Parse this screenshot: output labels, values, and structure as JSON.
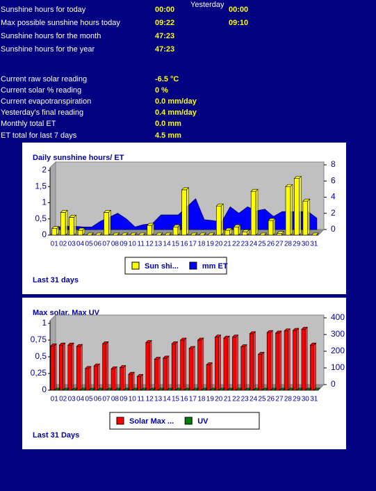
{
  "stats": {
    "yesterday_label": "Yesterday",
    "rows": [
      {
        "label": "Sunshine hours for today",
        "value": "00:00",
        "yesterday": "00:00"
      },
      {
        "label": "Max possible sunshine hours today",
        "value": "09:22",
        "yesterday": "09:10"
      },
      {
        "label": "Sunshine hours for the month",
        "value": "47:23"
      },
      {
        "label": "Sunshine hours for the year",
        "value": "47:23"
      },
      {
        "label": "Current raw solar reading",
        "value": "-6.5 °C"
      },
      {
        "label": "Current solar % reading",
        "value": "0 %"
      },
      {
        "label": "Current evapotranspiration",
        "value": "0.0 mm/day"
      },
      {
        "label": "Yesterday's final reading",
        "value": "0.4 mm/day"
      },
      {
        "label": "Monthly total ET",
        "value": "0.0 mm"
      },
      {
        "label": "ET total for last 7 days",
        "value": "4.5 mm"
      }
    ]
  },
  "chart_data": [
    {
      "type": "bar",
      "title": "Daily sunshine hours/ ET",
      "footer": "Last 31 days",
      "categories": [
        "01",
        "02",
        "03",
        "04",
        "05",
        "06",
        "07",
        "08",
        "09",
        "10",
        "11",
        "12",
        "13",
        "14",
        "15",
        "16",
        "17",
        "18",
        "19",
        "20",
        "21",
        "22",
        "23",
        "24",
        "25",
        "26",
        "27",
        "28",
        "29",
        "30",
        "31"
      ],
      "ylim": [
        0,
        2
      ],
      "yticks": [
        0,
        {
          "value": 0.5,
          "label": "0,5"
        },
        1,
        {
          "value": 1.5,
          "label": "1,5"
        },
        2
      ],
      "y2lim": [
        0,
        8
      ],
      "y2ticks": [
        0,
        2,
        4,
        6,
        8
      ],
      "series": [
        {
          "name": "Sun shi...",
          "color": "#ffff00",
          "values": [
            0.2,
            0.7,
            0.55,
            0.15,
            0,
            0,
            0.7,
            0,
            0,
            0,
            0,
            0.3,
            0,
            0,
            0.25,
            1.4,
            0,
            0,
            0,
            0.9,
            0.15,
            0.25,
            0.1,
            1.35,
            0,
            0.45,
            0.05,
            1.5,
            1.75,
            1.05,
            0
          ]
        },
        {
          "name": "mm ET",
          "color": "#0000ff",
          "type": "area",
          "axis": "y2",
          "values": [
            0.3,
            0.4,
            0.4,
            0.3,
            0.3,
            1.0,
            1.5,
            2.0,
            1.3,
            0.3,
            0.6,
            0.7,
            1.8,
            1.8,
            1.8,
            2.8,
            3.8,
            1.2,
            1.1,
            0.9,
            2.8,
            2.0,
            2.8,
            2.3,
            2.5,
            1.6,
            2.2,
            2.2,
            2.2,
            2.2,
            1.4
          ]
        }
      ]
    },
    {
      "type": "bar",
      "title": "Max solar, Max UV",
      "footer": "Last 31 Days",
      "categories": [
        "01",
        "02",
        "03",
        "04",
        "05",
        "06",
        "07",
        "08",
        "09",
        "10",
        "11",
        "12",
        "13",
        "14",
        "15",
        "16",
        "17",
        "18",
        "19",
        "20",
        "21",
        "22",
        "23",
        "24",
        "25",
        "26",
        "27",
        "28",
        "29",
        "30",
        "31"
      ],
      "ylim": [
        0,
        1
      ],
      "yticks": [
        0,
        {
          "value": 0.25,
          "label": "0,25"
        },
        {
          "value": 0.5,
          "label": "0,5"
        },
        {
          "value": 0.75,
          "label": "0,75"
        },
        1
      ],
      "y2lim": [
        0,
        400
      ],
      "y2ticks": [
        0,
        100,
        200,
        300,
        400
      ],
      "series": [
        {
          "name": "Solar Max ...",
          "color": "#ff0000",
          "axis": "y2",
          "values": [
            265,
            270,
            270,
            262,
            130,
            145,
            278,
            128,
            135,
            95,
            82,
            285,
            185,
            192,
            278,
            300,
            250,
            300,
            152,
            318,
            312,
            318,
            260,
            338,
            215,
            345,
            342,
            355,
            358,
            365,
            270
          ]
        },
        {
          "name": "UV",
          "color": "#008000",
          "values": [
            0,
            0,
            0,
            0,
            0,
            0,
            0,
            0,
            0,
            0,
            0,
            0,
            0,
            0,
            0,
            0,
            0,
            0,
            0,
            0,
            0,
            0,
            0,
            0,
            0,
            0,
            0,
            0,
            0,
            0,
            0
          ]
        }
      ]
    }
  ]
}
